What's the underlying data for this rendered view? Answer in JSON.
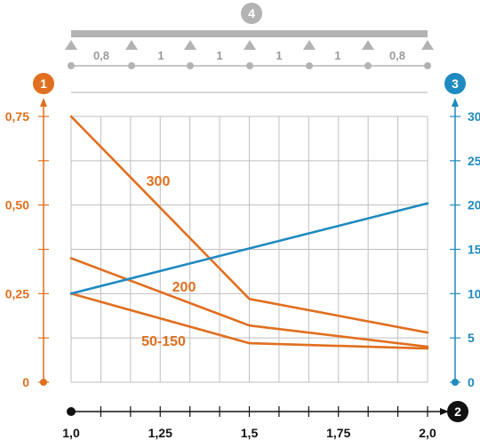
{
  "colors": {
    "orange": "#e06f1f",
    "blue": "#1f8ac0",
    "grid": "#bfbfbf",
    "beam": "#b3b3b3",
    "axis": "#111111"
  },
  "markers": {
    "left_axis": "1",
    "bottom_axis": "2",
    "right_axis": "3",
    "beam": "4"
  },
  "span_labels": [
    "0,8",
    "1",
    "1",
    "1",
    "1",
    "0,8"
  ],
  "chart_data": {
    "type": "line",
    "x_axis": {
      "range": [
        1.0,
        2.0
      ],
      "ticks": [
        1.0,
        1.25,
        1.5,
        1.75,
        2.0
      ],
      "tick_labels": [
        "1,0",
        "1,25",
        "1,5",
        "1,75",
        "2,0"
      ],
      "minor_step": 0.0833
    },
    "y_left": {
      "range": [
        0,
        0.75
      ],
      "ticks": [
        0,
        0.25,
        0.5,
        0.75
      ],
      "tick_labels": [
        "0",
        "0,25",
        "0,50",
        "0,75"
      ]
    },
    "y_right": {
      "range": [
        0,
        30
      ],
      "ticks": [
        0,
        5,
        10,
        15,
        20,
        25,
        30
      ],
      "tick_labels": [
        "0",
        "5",
        "10",
        "15",
        "20",
        "25",
        "30"
      ]
    },
    "grid": true,
    "series": [
      {
        "name": "300",
        "axis": "left",
        "color": "#e06f1f",
        "x": [
          1.0,
          1.5,
          2.0
        ],
        "y": [
          0.75,
          0.235,
          0.14
        ]
      },
      {
        "name": "200",
        "axis": "left",
        "color": "#e06f1f",
        "x": [
          1.0,
          1.5,
          2.0
        ],
        "y": [
          0.35,
          0.16,
          0.1
        ]
      },
      {
        "name": "50-150",
        "axis": "left",
        "color": "#e06f1f",
        "x": [
          1.0,
          1.5,
          2.0
        ],
        "y": [
          0.25,
          0.11,
          0.095
        ]
      },
      {
        "name": "",
        "axis": "right",
        "color": "#1f8ac0",
        "x": [
          1.0,
          2.0
        ],
        "y": [
          10,
          20.2
        ]
      }
    ]
  }
}
